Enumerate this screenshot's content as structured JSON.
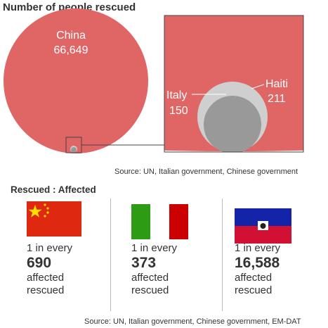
{
  "title": "Number of people rescued",
  "source_top": "Source: UN, Italian government, Chinese government",
  "subtitle": "Rescued : Affected",
  "source_bottom": "Source: UN, Italian government, Chinese government, EM-DAT",
  "colors": {
    "china_bubble": "#e06666",
    "italy_bubble": "#cfcfcf",
    "haiti_bubble": "#999999"
  },
  "chart_data": [
    {
      "type": "bubble",
      "title": "Number of people rescued",
      "series": [
        {
          "name": "China",
          "value": 66649,
          "value_label": "66,649"
        },
        {
          "name": "Italy",
          "value": 150,
          "value_label": "150"
        },
        {
          "name": "Haiti",
          "value": 211,
          "value_label": "211"
        }
      ]
    },
    {
      "type": "table",
      "title": "Rescued : Affected",
      "rows": [
        {
          "country": "China",
          "prefix": "1 in every",
          "value": 690,
          "value_label": "690",
          "line1": "affected",
          "line2": "rescued"
        },
        {
          "country": "Italy",
          "prefix": "1 in every",
          "value": 373,
          "value_label": "373",
          "line1": "affected",
          "line2": "rescued"
        },
        {
          "country": "Haiti",
          "prefix": "1 in every",
          "value": 16588,
          "value_label": "16,588",
          "line1": "affected",
          "line2": "rescued"
        }
      ]
    }
  ]
}
